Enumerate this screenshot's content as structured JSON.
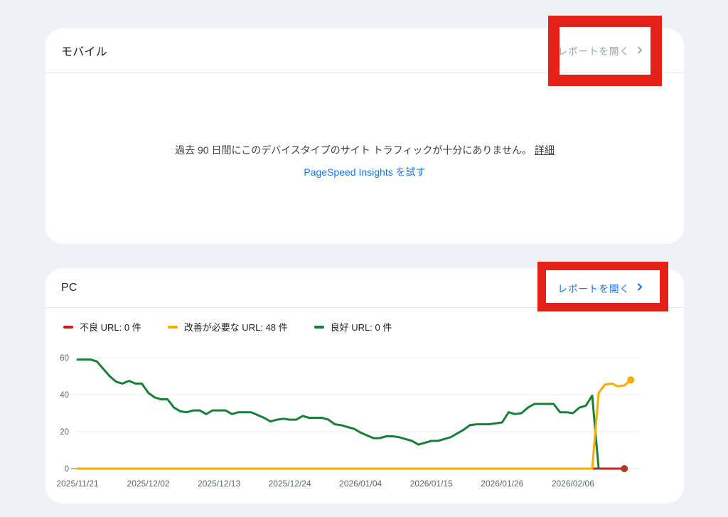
{
  "page": {
    "background_color": "#eef1f6",
    "annotation_color": "#e32119"
  },
  "cards": {
    "mobile": {
      "title": "モバイル",
      "open_report_label": "レポートを開く",
      "open_report_state": "disabled",
      "open_report_chevron_icon": "chevron-right",
      "message": "過去 90 日間にこのデバイスタイプのサイト トラフィックが十分にありません。",
      "details_link": "詳細",
      "pagespeed_link": "PageSpeed Insights を試す"
    },
    "pc": {
      "title": "PC",
      "open_report_label": "レポートを開く",
      "open_report_state": "active",
      "open_report_chevron_icon": "chevron-right"
    }
  },
  "legend": [
    {
      "id": "poor",
      "label": "不良 URL: 0 件",
      "color": "#c5221f"
    },
    {
      "id": "needs-improvement",
      "label": "改善が必要な URL: 48 件",
      "color": "#f9ab00"
    },
    {
      "id": "good",
      "label": "良好 URL: 0 件",
      "color": "#188038"
    }
  ],
  "chart_data": {
    "type": "line",
    "x_unit": "day",
    "start_date": "2025/11/21",
    "x_tick_days": [
      0,
      11,
      22,
      33,
      44,
      55,
      66,
      77
    ],
    "x_tick_labels": [
      "2025/11/21",
      "2025/12/02",
      "2025/12/13",
      "2025/12/24",
      "2026/01/04",
      "2026/01/15",
      "2026/01/26",
      "2026/02/06"
    ],
    "y_ticks": [
      0,
      20,
      40,
      60
    ],
    "ylim": [
      0,
      62
    ],
    "grid": true,
    "legend_position": "top-left",
    "series": [
      {
        "id": "poor",
        "name": "不良 URL",
        "count": 0,
        "color": "#c5221f",
        "end_dot": true,
        "end_dot_color": "#b13a25",
        "values": [
          0,
          0,
          0,
          0,
          0,
          0,
          0,
          0,
          0,
          0,
          0,
          0,
          0,
          0,
          0,
          0,
          0,
          0,
          0,
          0,
          0,
          0,
          0,
          0,
          0,
          0,
          0,
          0,
          0,
          0,
          0,
          0,
          0,
          0,
          0,
          0,
          0,
          0,
          0,
          0,
          0,
          0,
          0,
          0,
          0,
          0,
          0,
          0,
          0,
          0,
          0,
          0,
          0,
          0,
          0,
          0,
          0,
          0,
          0,
          0,
          0,
          0,
          0,
          0,
          0,
          0,
          0,
          0,
          0,
          0,
          0,
          0,
          0,
          0,
          0,
          0,
          0,
          0,
          0,
          0,
          0,
          0,
          0,
          0,
          0,
          0
        ]
      },
      {
        "id": "good",
        "name": "良好 URL",
        "count": 0,
        "color": "#188038",
        "end_dot": false,
        "values": [
          59,
          59,
          59,
          58,
          54,
          50,
          47,
          46,
          47.5,
          46,
          46,
          41,
          38.5,
          37.5,
          37.5,
          33,
          31,
          30.5,
          31.5,
          31.5,
          29.5,
          31.5,
          31.5,
          31.5,
          29.5,
          30.5,
          30.5,
          30.5,
          29,
          27.5,
          25.5,
          26.5,
          27,
          26.5,
          26.5,
          28.5,
          27.5,
          27.5,
          27.5,
          26.5,
          24,
          23.5,
          22.5,
          21.5,
          19.5,
          18,
          16.5,
          16.5,
          17.5,
          17.5,
          17,
          16,
          15,
          13,
          14,
          15,
          15,
          16,
          17,
          19,
          21,
          23.5,
          24,
          24,
          24,
          24.5,
          25,
          30.5,
          29.5,
          30,
          33,
          35,
          35,
          35,
          35,
          30.5,
          30.5,
          30,
          33,
          34,
          39.5,
          0
        ]
      },
      {
        "id": "needs-improvement",
        "name": "改善が必要な URL",
        "count": 48,
        "color": "#f9ab00",
        "end_dot": true,
        "end_dot_color": "#f9ab00",
        "values": [
          0,
          0,
          0,
          0,
          0,
          0,
          0,
          0,
          0,
          0,
          0,
          0,
          0,
          0,
          0,
          0,
          0,
          0,
          0,
          0,
          0,
          0,
          0,
          0,
          0,
          0,
          0,
          0,
          0,
          0,
          0,
          0,
          0,
          0,
          0,
          0,
          0,
          0,
          0,
          0,
          0,
          0,
          0,
          0,
          0,
          0,
          0,
          0,
          0,
          0,
          0,
          0,
          0,
          0,
          0,
          0,
          0,
          0,
          0,
          0,
          0,
          0,
          0,
          0,
          0,
          0,
          0,
          0,
          0,
          0,
          0,
          0,
          0,
          0,
          0,
          0,
          0,
          0,
          0,
          0,
          0,
          41,
          45.5,
          46,
          44.5,
          45,
          48
        ]
      }
    ]
  }
}
